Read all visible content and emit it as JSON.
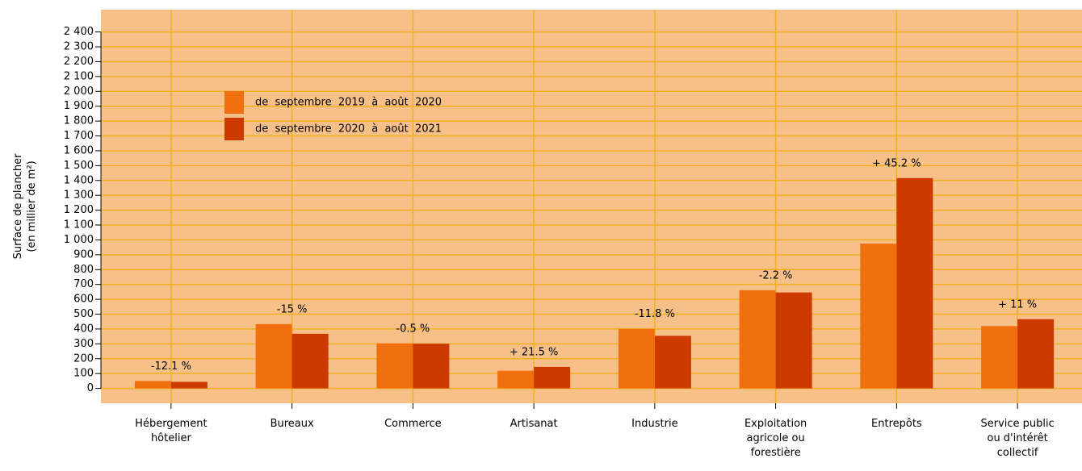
{
  "chart_data": {
    "type": "bar",
    "ylabel": [
      "Surface de plancher",
      "(en millier de m²)"
    ],
    "categories": [
      [
        "Hébergement",
        "hôtelier"
      ],
      [
        "Bureaux"
      ],
      [
        "Commerce"
      ],
      [
        "Artisanat"
      ],
      [
        "Industrie"
      ],
      [
        "Exploitation",
        "agricole ou",
        "forestière"
      ],
      [
        "Entrepôts"
      ],
      [
        "Service public",
        "ou d'intérêt",
        "collectif"
      ]
    ],
    "series": [
      {
        "name": "de  septembre  2019  à  août  2020",
        "color": "#f07010",
        "values": [
          50,
          433,
          303,
          119,
          401,
          661,
          975,
          420
        ]
      },
      {
        "name": "de  septembre  2020  à  août  2021",
        "color": "#cc3a00",
        "values": [
          44,
          368,
          301,
          145,
          354,
          646,
          1416,
          466
        ]
      }
    ],
    "annotations": [
      "-12.1 %",
      "-15 %",
      "-0.5 %",
      "+ 21.5 %",
      "-11.8 %",
      "-2.2 %",
      "+ 45.2 %",
      "+ 11 %"
    ],
    "ylim": [
      -100,
      2550
    ],
    "yticks": [
      0,
      100,
      200,
      300,
      400,
      500,
      600,
      700,
      800,
      900,
      {
        "value": 1000,
        "label": "1 000"
      },
      {
        "value": 1100,
        "label": "1 100"
      },
      {
        "value": 1200,
        "label": "1 200"
      },
      {
        "value": 1300,
        "label": "1 300"
      },
      {
        "value": 1400,
        "label": "1 400"
      },
      {
        "value": 1500,
        "label": "1 500"
      },
      {
        "value": 1600,
        "label": "1 600"
      },
      {
        "value": 1700,
        "label": "1 700"
      },
      {
        "value": 1800,
        "label": "1 800"
      },
      {
        "value": 1900,
        "label": "1 900"
      },
      {
        "value": 2000,
        "label": "2 000"
      },
      {
        "value": 2100,
        "label": "2 100"
      },
      {
        "value": 2200,
        "label": "2 200"
      },
      {
        "value": 2300,
        "label": "2 300"
      },
      {
        "value": 2400,
        "label": "2 400"
      }
    ],
    "grid": true
  }
}
